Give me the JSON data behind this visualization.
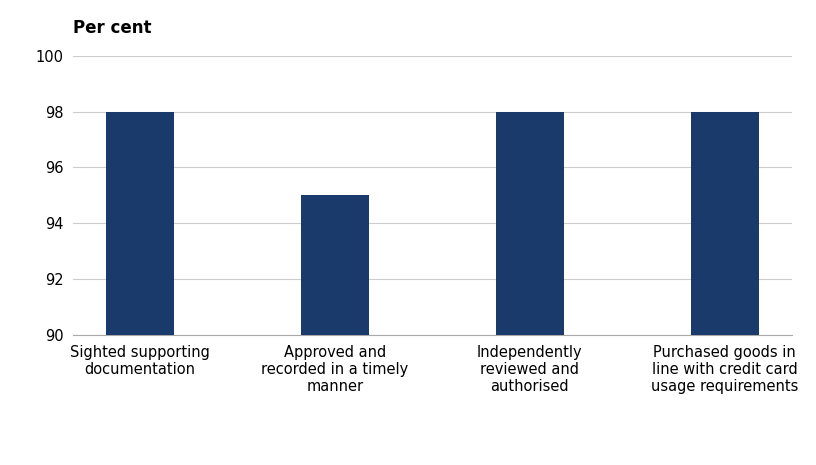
{
  "categories": [
    "Sighted supporting\ndocumentation",
    "Approved and\nrecorded in a timely\nmanner",
    "Independently\nreviewed and\nauthorised",
    "Purchased goods in\nline with credit card\nusage requirements"
  ],
  "values": [
    98,
    95,
    98,
    98
  ],
  "bar_color": "#1a3a6b",
  "ylabel": "Per cent",
  "ylim": [
    90,
    100
  ],
  "yticks": [
    90,
    92,
    94,
    96,
    98,
    100
  ],
  "background_color": "#ffffff",
  "grid_color": "#cccccc",
  "ylabel_fontsize": 12,
  "tick_fontsize": 10.5,
  "xlabel_fontsize": 10.5,
  "bar_width": 0.35
}
